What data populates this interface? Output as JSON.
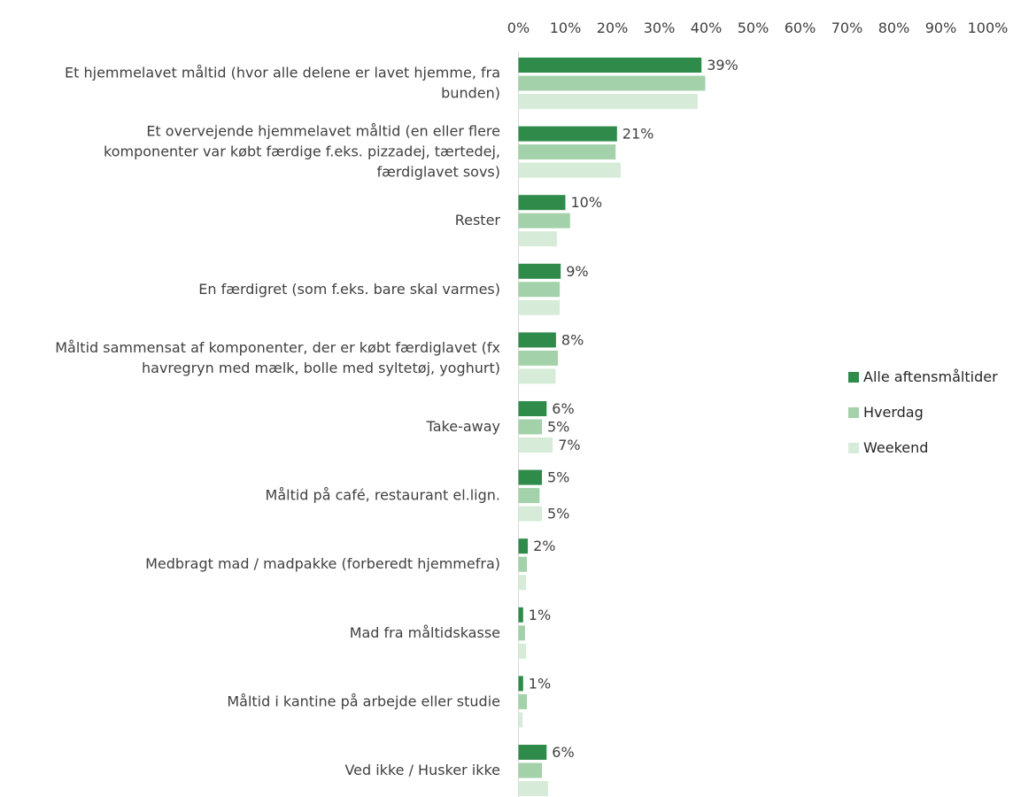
{
  "chart_data": {
    "type": "bar",
    "orientation": "horizontal",
    "categories": [
      "Et hjemmelavet måltid (hvor alle delene er lavet hjemme, fra bunden)",
      "Et overvejende hjemmelavet måltid (en eller flere komponenter var købt færdige f.eks. pizzadej, tærtedej, færdiglavet sovs)",
      "Rester",
      "En færdigret (som f.eks. bare skal varmes)",
      "Måltid sammensat af komponenter, der er købt færdiglavet (fx havregryn med mælk, bolle med syltetøj, yoghurt)",
      "Take-away",
      "Måltid på café, restaurant el.lign.",
      "Medbragt mad / madpakke (forberedt hjemmefra)",
      "Mad fra måltidskasse",
      "Måltid i kantine på arbejde eller studie",
      "Ved ikke / Husker ikke"
    ],
    "category_lines": [
      [
        "Et hjemmelavet måltid (hvor alle delene er lavet hjemme, fra",
        "bunden)"
      ],
      [
        "Et overvejende hjemmelavet måltid (en eller flere",
        "komponenter var købt færdige f.eks. pizzadej, tærtedej,",
        "færdiglavet sovs)"
      ],
      [
        "Rester"
      ],
      [
        "En færdigret (som f.eks. bare skal varmes)"
      ],
      [
        "Måltid sammensat af komponenter, der er købt færdiglavet (fx",
        "havregryn med mælk, bolle med syltetøj, yoghurt)"
      ],
      [
        "Take-away"
      ],
      [
        "Måltid på café, restaurant el.lign."
      ],
      [
        "Medbragt mad / madpakke (forberedt hjemmefra)"
      ],
      [
        "Mad fra måltidskasse"
      ],
      [
        "Måltid i kantine på arbejde eller studie"
      ],
      [
        "Ved ikke / Husker ikke"
      ]
    ],
    "series": [
      {
        "name": "Alle aftensmåltider",
        "color": "#2e8b4a",
        "values": [
          39,
          21,
          10,
          9,
          8,
          6,
          5,
          2,
          1,
          1,
          6
        ],
        "labels": [
          "39%",
          "21%",
          "10%",
          "9%",
          "8%",
          "6%",
          "5%",
          "2%",
          "1%",
          "1%",
          "6%"
        ]
      },
      {
        "name": "Hverdag",
        "color": "#a3d1a9",
        "values": [
          39.8,
          20.7,
          11,
          8.8,
          8.4,
          5,
          4.5,
          1.8,
          1.4,
          1.8,
          5
        ],
        "labels": [
          "",
          "",
          "",
          "",
          "",
          "5%",
          "",
          "",
          "",
          "",
          ""
        ]
      },
      {
        "name": "Weekend",
        "color": "#d6ecd8",
        "values": [
          38.2,
          21.8,
          8.2,
          8.8,
          7.9,
          7.3,
          5,
          1.6,
          1.6,
          0.9,
          6.3
        ],
        "labels": [
          "",
          "",
          "",
          "",
          "",
          "7%",
          "5%",
          "",
          "",
          "",
          ""
        ]
      }
    ],
    "xlim": [
      0,
      100
    ],
    "xticks": [
      0,
      10,
      20,
      30,
      40,
      50,
      60,
      70,
      80,
      90,
      100
    ],
    "xtick_labels": [
      "0%",
      "10%",
      "20%",
      "30%",
      "40%",
      "50%",
      "60%",
      "70%",
      "80%",
      "90%",
      "100%"
    ],
    "axis_position": "top",
    "grid": false,
    "legend_position": "right",
    "title": "",
    "xlabel": "",
    "ylabel": ""
  }
}
